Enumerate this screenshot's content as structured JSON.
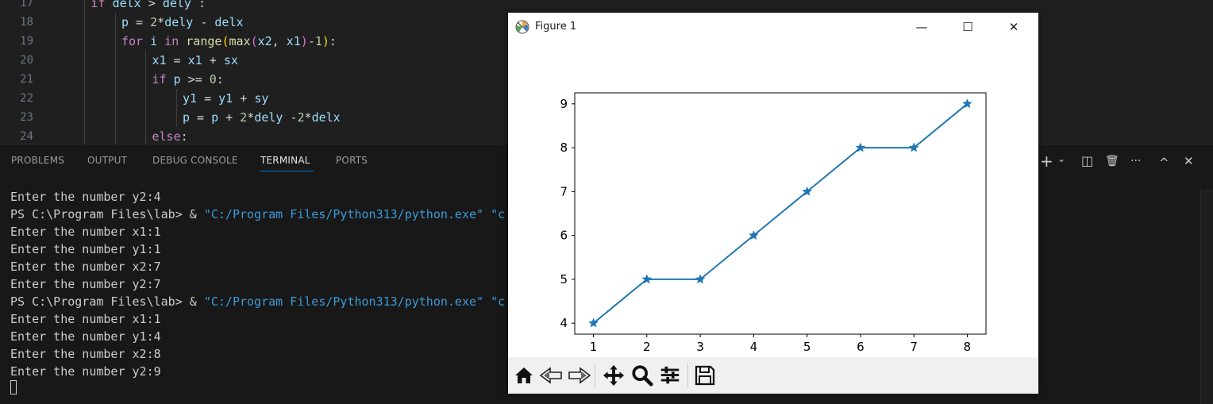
{
  "editor": {
    "lines": [
      {
        "n": "17",
        "indent": 2,
        "tokens": [
          [
            "kw",
            "if "
          ],
          [
            "var",
            "delx"
          ],
          [
            "op",
            " > "
          ],
          [
            "var",
            "dely"
          ],
          [
            "op",
            " :"
          ]
        ]
      },
      {
        "n": "18",
        "indent": 3,
        "tokens": [
          [
            "var",
            "p"
          ],
          [
            "op",
            " = "
          ],
          [
            "num",
            "2"
          ],
          [
            "op",
            "*"
          ],
          [
            "var",
            "dely"
          ],
          [
            "op",
            " - "
          ],
          [
            "var",
            "delx"
          ]
        ]
      },
      {
        "n": "19",
        "indent": 3,
        "tokens": [
          [
            "kw",
            "for "
          ],
          [
            "var",
            "i"
          ],
          [
            "kw",
            " in "
          ],
          [
            "fn",
            "range"
          ],
          [
            "par1",
            "("
          ],
          [
            "fn",
            "max"
          ],
          [
            "par2",
            "("
          ],
          [
            "var",
            "x2"
          ],
          [
            "op",
            ", "
          ],
          [
            "var",
            "x1"
          ],
          [
            "par2",
            ")"
          ],
          [
            "op",
            "-"
          ],
          [
            "num",
            "1"
          ],
          [
            "par1",
            ")"
          ],
          [
            "op",
            ":"
          ]
        ]
      },
      {
        "n": "20",
        "indent": 4,
        "tokens": [
          [
            "var",
            "x1"
          ],
          [
            "op",
            " = "
          ],
          [
            "var",
            "x1"
          ],
          [
            "op",
            " + "
          ],
          [
            "var",
            "sx"
          ]
        ]
      },
      {
        "n": "21",
        "indent": 4,
        "tokens": [
          [
            "kw",
            "if "
          ],
          [
            "var",
            "p"
          ],
          [
            "op",
            " >= "
          ],
          [
            "num",
            "0"
          ],
          [
            "op",
            ":"
          ]
        ]
      },
      {
        "n": "22",
        "indent": 5,
        "tokens": [
          [
            "var",
            "y1"
          ],
          [
            "op",
            " = "
          ],
          [
            "var",
            "y1"
          ],
          [
            "op",
            " + "
          ],
          [
            "var",
            "sy"
          ]
        ]
      },
      {
        "n": "23",
        "indent": 5,
        "tokens": [
          [
            "var",
            "p"
          ],
          [
            "op",
            " = "
          ],
          [
            "var",
            "p"
          ],
          [
            "op",
            " + "
          ],
          [
            "num",
            "2"
          ],
          [
            "op",
            "*"
          ],
          [
            "var",
            "dely"
          ],
          [
            "op",
            " -"
          ],
          [
            "num",
            "2"
          ],
          [
            "op",
            "*"
          ],
          [
            "var",
            "delx"
          ]
        ]
      },
      {
        "n": "24",
        "indent": 4,
        "tokens": [
          [
            "kw",
            "else"
          ],
          [
            "op",
            ":"
          ]
        ]
      }
    ]
  },
  "panel": {
    "tabs": [
      "PROBLEMS",
      "OUTPUT",
      "DEBUG CONSOLE",
      "TERMINAL",
      "PORTS"
    ],
    "active_tab": "TERMINAL",
    "actions": {
      "add": "+",
      "dropdown": "⌄",
      "split": "◫",
      "trash": "🗑",
      "more": "···",
      "maximize": "^",
      "close": "✕"
    }
  },
  "terminal": {
    "lines": [
      {
        "text": "Enter the number y2:4"
      },
      {
        "prefix": "PS C:\\Program Files\\lab> & ",
        "str": "\"C:/Program Files/Python313/python.exe\" \"c:"
      },
      {
        "text": "Enter the number x1:1"
      },
      {
        "text": "Enter the number y1:1"
      },
      {
        "text": "Enter the number x2:7"
      },
      {
        "text": "Enter the number y2:7"
      },
      {
        "prefix": "PS C:\\Program Files\\lab> & ",
        "str": "\"C:/Program Files/Python313/python.exe\" \"c:"
      },
      {
        "text": "Enter the number x1:1"
      },
      {
        "text": "Enter the number y1:4"
      },
      {
        "text": "Enter the number x2:8"
      },
      {
        "text": "Enter the number y2:9"
      }
    ]
  },
  "figure": {
    "title": "Figure 1",
    "controls": {
      "minimize": "—",
      "maximize": "☐",
      "close": "✕"
    },
    "toolbar_icons": [
      "home-icon",
      "back-icon",
      "forward-icon",
      "pan-icon",
      "zoom-icon",
      "configure-subplots-icon",
      "save-icon"
    ]
  },
  "chart_data": {
    "type": "line",
    "x": [
      1,
      2,
      3,
      4,
      5,
      6,
      7,
      8
    ],
    "y": [
      4,
      5,
      5,
      6,
      7,
      8,
      8,
      9
    ],
    "marker": "*",
    "color": "#1f77b4",
    "xlim": [
      0.65,
      8.35
    ],
    "ylim": [
      3.75,
      9.25
    ],
    "xticks": [
      1,
      2,
      3,
      4,
      5,
      6,
      7,
      8
    ],
    "yticks": [
      4,
      5,
      6,
      7,
      8,
      9
    ],
    "grid": false
  }
}
